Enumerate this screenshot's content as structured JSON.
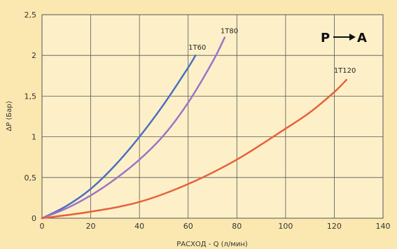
{
  "chart_data": {
    "type": "line",
    "title": "",
    "xlabel": "РАСХОД - Q (л/мин)",
    "ylabel": "ΔP (Бар)",
    "xlim": [
      0,
      140
    ],
    "ylim": [
      0,
      2.5
    ],
    "x_ticks": [
      "0",
      "20",
      "40",
      "60",
      "80",
      "100",
      "120",
      "140"
    ],
    "y_ticks": [
      "0",
      "0,5",
      "1",
      "1,5",
      "2",
      "2,5"
    ],
    "grid": true,
    "annotation": "P",
    "annotation_to": "A",
    "series": [
      {
        "name": "1T60",
        "color": "#4a6fc0",
        "x": [
          0,
          10,
          20,
          30,
          40,
          50,
          60,
          63
        ],
        "y": [
          0,
          0.15,
          0.36,
          0.65,
          1.0,
          1.4,
          1.85,
          2.0
        ]
      },
      {
        "name": "1T80",
        "color": "#9e73c8",
        "x": [
          0,
          10,
          20,
          30,
          40,
          50,
          60,
          70,
          75
        ],
        "y": [
          0,
          0.12,
          0.28,
          0.48,
          0.72,
          1.02,
          1.42,
          1.92,
          2.22
        ]
      },
      {
        "name": "1T120",
        "color": "#e8603a",
        "x": [
          0,
          20,
          40,
          60,
          80,
          100,
          110,
          120,
          125
        ],
        "y": [
          0,
          0.08,
          0.2,
          0.42,
          0.72,
          1.1,
          1.3,
          1.55,
          1.7
        ]
      }
    ]
  }
}
